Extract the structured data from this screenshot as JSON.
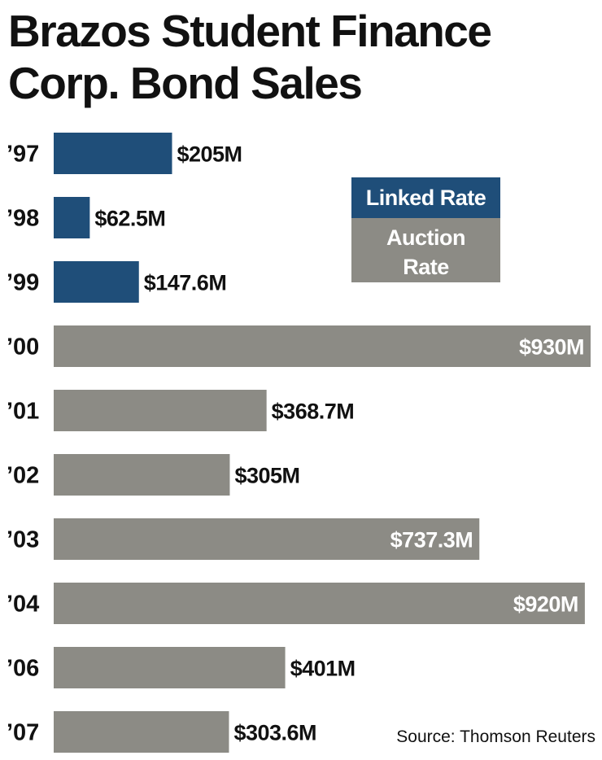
{
  "title_line1": "Brazos Student Finance",
  "title_line2": "Corp. Bond Sales",
  "source": "Source: Thomson Reuters",
  "colors": {
    "linked": "#1f4e79",
    "auction": "#8c8b85",
    "text": "#111111"
  },
  "chart_data": {
    "type": "bar",
    "orientation": "horizontal",
    "title": "Brazos Student Finance Corp. Bond Sales",
    "categories": [
      "’97",
      "’98",
      "’99",
      "’00",
      "’01",
      "’02",
      "’03",
      "’04",
      "’06",
      "’07"
    ],
    "values": [
      205,
      62.5,
      147.6,
      930,
      368.7,
      305,
      737.3,
      920,
      401,
      303.6
    ],
    "labels": [
      "$205M",
      "$62.5M",
      "$147.6M",
      "$930M",
      "$368.7M",
      "$305M",
      "$737.3M",
      "$920M",
      "$401M",
      "$303.6M"
    ],
    "rate_type": [
      "Linked Rate",
      "Linked Rate",
      "Linked Rate",
      "Auction Rate",
      "Auction Rate",
      "Auction Rate",
      "Auction Rate",
      "Auction Rate",
      "Auction Rate",
      "Auction Rate"
    ],
    "unit": "$M",
    "legend": [
      {
        "name": "Linked Rate",
        "color": "#1f4e79"
      },
      {
        "name": "Auction Rate",
        "color": "#8c8b85"
      }
    ],
    "legend_line1": "Auction",
    "legend_line2": "Rate",
    "legend_placement": "top-right",
    "grid": false
  }
}
